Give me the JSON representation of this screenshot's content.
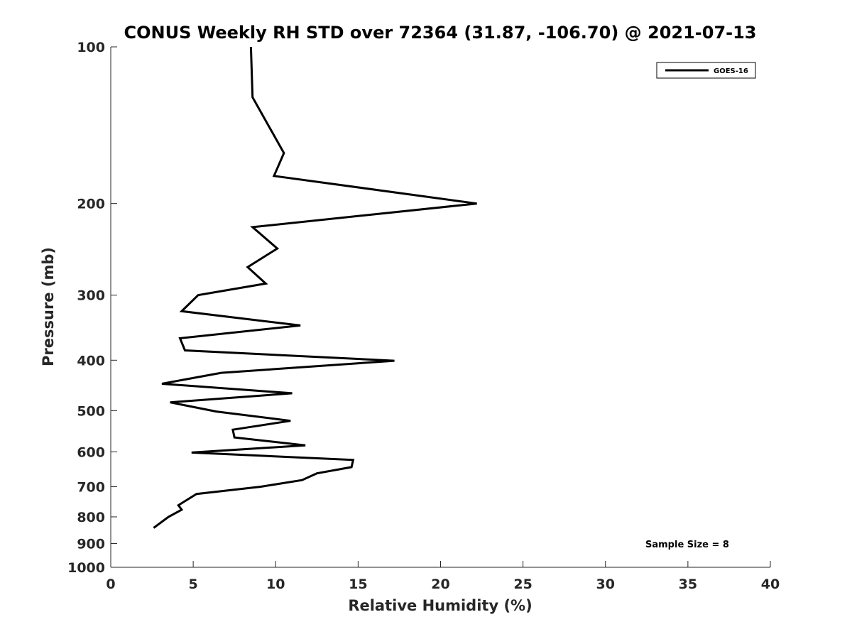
{
  "chart_data": {
    "type": "line",
    "title": "CONUS Weekly RH STD over 72364 (31.87, -106.70) @ 2021-07-13",
    "xlabel": "Relative Humidity (%)",
    "ylabel": "Pressure (mb)",
    "xlim": [
      0,
      40
    ],
    "ylim": [
      100,
      1000
    ],
    "y_scale": "log",
    "y_reversed": true,
    "x_ticks": [
      0,
      5,
      10,
      15,
      20,
      25,
      30,
      35,
      40
    ],
    "y_ticks": [
      100,
      200,
      300,
      400,
      500,
      600,
      700,
      800,
      900,
      1000
    ],
    "grid": false,
    "legend": {
      "position": "top-right",
      "entries": [
        "GOES-16"
      ]
    },
    "annotation": "Sample Size = 8",
    "series": [
      {
        "name": "GOES-16",
        "color": "#000000",
        "points": [
          {
            "x": 8.5,
            "y": 100
          },
          {
            "x": 8.6,
            "y": 125
          },
          {
            "x": 10.5,
            "y": 160
          },
          {
            "x": 9.9,
            "y": 177
          },
          {
            "x": 22.2,
            "y": 200
          },
          {
            "x": 8.6,
            "y": 222
          },
          {
            "x": 10.1,
            "y": 244
          },
          {
            "x": 8.3,
            "y": 265
          },
          {
            "x": 9.4,
            "y": 285
          },
          {
            "x": 5.3,
            "y": 300
          },
          {
            "x": 4.3,
            "y": 322
          },
          {
            "x": 11.5,
            "y": 343
          },
          {
            "x": 4.2,
            "y": 363
          },
          {
            "x": 4.5,
            "y": 383
          },
          {
            "x": 17.2,
            "y": 401
          },
          {
            "x": 6.7,
            "y": 423
          },
          {
            "x": 3.1,
            "y": 444
          },
          {
            "x": 11.0,
            "y": 463
          },
          {
            "x": 3.6,
            "y": 482
          },
          {
            "x": 6.4,
            "y": 502
          },
          {
            "x": 10.9,
            "y": 523
          },
          {
            "x": 7.4,
            "y": 544
          },
          {
            "x": 7.5,
            "y": 563
          },
          {
            "x": 11.8,
            "y": 583
          },
          {
            "x": 4.9,
            "y": 602
          },
          {
            "x": 14.7,
            "y": 622
          },
          {
            "x": 14.6,
            "y": 642
          },
          {
            "x": 12.5,
            "y": 660
          },
          {
            "x": 11.6,
            "y": 680
          },
          {
            "x": 9.1,
            "y": 700
          },
          {
            "x": 5.2,
            "y": 723
          },
          {
            "x": 4.1,
            "y": 760
          },
          {
            "x": 4.3,
            "y": 775
          },
          {
            "x": 3.5,
            "y": 800
          },
          {
            "x": 2.6,
            "y": 840
          }
        ]
      }
    ]
  }
}
